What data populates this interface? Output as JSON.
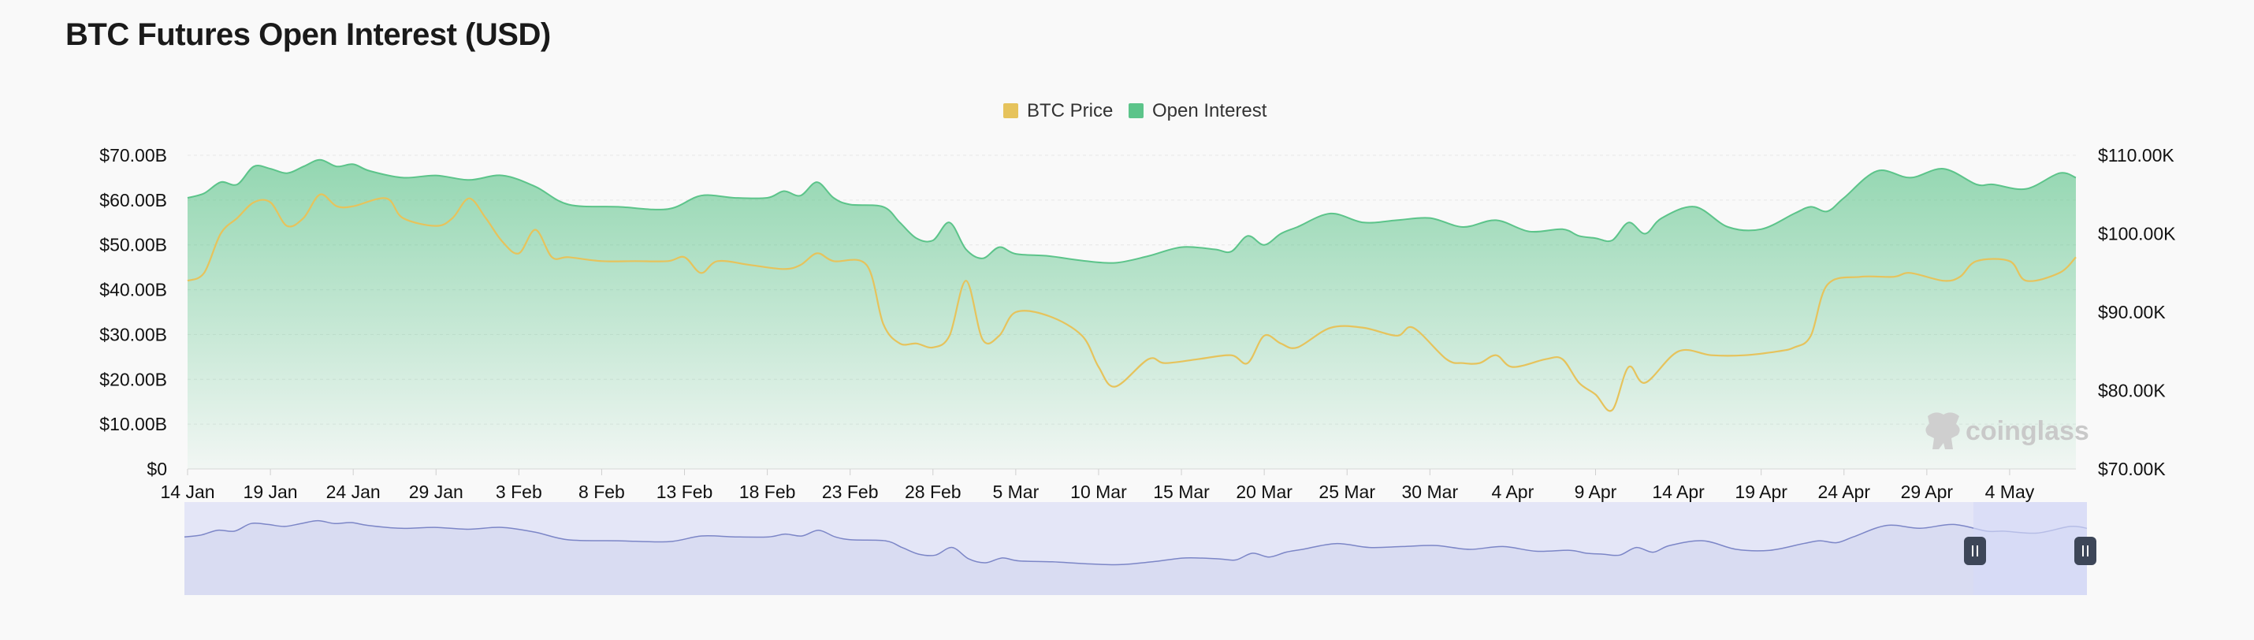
{
  "page": {
    "title": "BTC Futures Open Interest (USD)",
    "watermark": "coinglass"
  },
  "colors": {
    "btc_price": "#e6c35c",
    "open_interest": "#5cc48a",
    "navigator_fill": "#e4e6f7",
    "navigator_line": "#7c86c7",
    "navigator_selected": "#d6daf7",
    "handle": "#3d4658"
  },
  "chart_data": {
    "type": "area",
    "title": "BTC Futures Open Interest (USD)",
    "legend": [
      "BTC Price",
      "Open Interest"
    ],
    "legend_position": "top-center",
    "grid": true,
    "y_left": {
      "ticks": [
        "$0",
        "$10.00B",
        "$20.00B",
        "$30.00B",
        "$40.00B",
        "$50.00B",
        "$60.00B",
        "$70.00B"
      ],
      "range": [
        0,
        70
      ]
    },
    "y_right": {
      "ticks": [
        "$70.00K",
        "$80.00K",
        "$90.00K",
        "$100.00K",
        "$110.00K"
      ],
      "range": [
        70,
        110
      ]
    },
    "x_ticks": [
      "14 Jan",
      "19 Jan",
      "24 Jan",
      "29 Jan",
      "3 Feb",
      "8 Feb",
      "13 Feb",
      "18 Feb",
      "23 Feb",
      "28 Feb",
      "5 Mar",
      "10 Mar",
      "15 Mar",
      "20 Mar",
      "25 Mar",
      "30 Mar",
      "4 Apr",
      "9 Apr",
      "14 Apr",
      "19 Apr",
      "24 Apr",
      "29 Apr",
      "4 May"
    ],
    "x_range": [
      "2025-01-14",
      "2025-05-08"
    ],
    "series": [
      {
        "name": "Open Interest",
        "axis": "left",
        "unit": "USD billions",
        "x": [
          "2025-01-14",
          "2025-01-15",
          "2025-01-16",
          "2025-01-17",
          "2025-01-18",
          "2025-01-19",
          "2025-01-20",
          "2025-01-21",
          "2025-01-22",
          "2025-01-23",
          "2025-01-24",
          "2025-01-25",
          "2025-01-27",
          "2025-01-29",
          "2025-01-31",
          "2025-02-02",
          "2025-02-04",
          "2025-02-06",
          "2025-02-09",
          "2025-02-12",
          "2025-02-14",
          "2025-02-16",
          "2025-02-18",
          "2025-02-19",
          "2025-02-20",
          "2025-02-21",
          "2025-02-22",
          "2025-02-23",
          "2025-02-25",
          "2025-02-26",
          "2025-02-27",
          "2025-02-28",
          "2025-03-01",
          "2025-03-02",
          "2025-03-03",
          "2025-03-04",
          "2025-03-05",
          "2025-03-07",
          "2025-03-09",
          "2025-03-11",
          "2025-03-13",
          "2025-03-15",
          "2025-03-17",
          "2025-03-18",
          "2025-03-19",
          "2025-03-20",
          "2025-03-21",
          "2025-03-22",
          "2025-03-24",
          "2025-03-26",
          "2025-03-28",
          "2025-03-30",
          "2025-04-01",
          "2025-04-03",
          "2025-04-05",
          "2025-04-07",
          "2025-04-08",
          "2025-04-09",
          "2025-04-10",
          "2025-04-11",
          "2025-04-12",
          "2025-04-13",
          "2025-04-15",
          "2025-04-17",
          "2025-04-19",
          "2025-04-21",
          "2025-04-22",
          "2025-04-23",
          "2025-04-24",
          "2025-04-26",
          "2025-04-28",
          "2025-04-30",
          "2025-05-02",
          "2025-05-03",
          "2025-05-05",
          "2025-05-07",
          "2025-05-08"
        ],
        "values": [
          60.5,
          61.5,
          64,
          63.5,
          67.5,
          67,
          66,
          67.5,
          69,
          67.5,
          68,
          66.5,
          65,
          65.5,
          64.5,
          65.5,
          63,
          59,
          58.5,
          58,
          61,
          60.5,
          60.5,
          62,
          61,
          64,
          60.5,
          59,
          58.5,
          55,
          51.5,
          51,
          55,
          49,
          47,
          49.5,
          48,
          47.5,
          46.5,
          46,
          47.5,
          49.5,
          49,
          48.5,
          52,
          50,
          52.5,
          54,
          57,
          55,
          55.5,
          56,
          54,
          55.5,
          53,
          53.5,
          52,
          51.5,
          51,
          55,
          52.5,
          56,
          58.5,
          54,
          53.5,
          57,
          58.5,
          57.5,
          60.5,
          66.5,
          65,
          67,
          63.5,
          63.5,
          62.5,
          66,
          65
        ]
      },
      {
        "name": "BTC Price",
        "axis": "right",
        "unit": "USD thousands",
        "x": [
          "2025-01-14",
          "2025-01-15",
          "2025-01-16",
          "2025-01-17",
          "2025-01-18",
          "2025-01-19",
          "2025-01-20",
          "2025-01-21",
          "2025-01-22",
          "2025-01-23",
          "2025-01-24",
          "2025-01-26",
          "2025-01-27",
          "2025-01-29",
          "2025-01-30",
          "2025-01-31",
          "2025-02-01",
          "2025-02-02",
          "2025-02-03",
          "2025-02-04",
          "2025-02-05",
          "2025-02-06",
          "2025-02-08",
          "2025-02-10",
          "2025-02-12",
          "2025-02-13",
          "2025-02-14",
          "2025-02-15",
          "2025-02-17",
          "2025-02-19",
          "2025-02-20",
          "2025-02-21",
          "2025-02-22",
          "2025-02-24",
          "2025-02-25",
          "2025-02-26",
          "2025-02-27",
          "2025-02-28",
          "2025-03-01",
          "2025-03-02",
          "2025-03-03",
          "2025-03-04",
          "2025-03-05",
          "2025-03-07",
          "2025-03-09",
          "2025-03-10",
          "2025-03-11",
          "2025-03-13",
          "2025-03-14",
          "2025-03-16",
          "2025-03-18",
          "2025-03-19",
          "2025-03-20",
          "2025-03-21",
          "2025-03-22",
          "2025-03-24",
          "2025-03-26",
          "2025-03-28",
          "2025-03-29",
          "2025-03-31",
          "2025-04-01",
          "2025-04-02",
          "2025-04-03",
          "2025-04-04",
          "2025-04-06",
          "2025-04-07",
          "2025-04-08",
          "2025-04-09",
          "2025-04-10",
          "2025-04-11",
          "2025-04-12",
          "2025-04-14",
          "2025-04-16",
          "2025-04-18",
          "2025-04-20",
          "2025-04-21",
          "2025-04-22",
          "2025-04-23",
          "2025-04-25",
          "2025-04-27",
          "2025-04-28",
          "2025-04-30",
          "2025-05-01",
          "2025-05-02",
          "2025-05-04",
          "2025-05-05",
          "2025-05-07",
          "2025-05-08"
        ],
        "values": [
          94,
          95,
          100,
          102,
          104,
          104,
          101,
          102,
          105,
          103.5,
          103.5,
          104.5,
          102,
          101,
          102,
          104.5,
          102,
          99,
          97.5,
          100.5,
          97,
          97,
          96.5,
          96.5,
          96.5,
          97,
          95,
          96.5,
          96,
          95.5,
          96,
          97.5,
          96.5,
          96,
          88.5,
          86,
          86,
          85.5,
          87,
          94,
          86.5,
          87,
          90,
          89.5,
          87,
          83,
          80.5,
          84,
          83.5,
          84,
          84.5,
          83.5,
          87,
          86,
          85.5,
          88,
          88,
          87,
          88,
          84,
          83.5,
          83.5,
          84.5,
          83,
          84,
          84,
          81,
          79.5,
          77.5,
          83,
          81,
          85,
          84.5,
          84.5,
          85,
          85.5,
          87,
          93.5,
          94.5,
          94.5,
          95,
          94,
          94.5,
          96.5,
          96.5,
          94,
          95,
          97
        ]
      }
    ]
  }
}
